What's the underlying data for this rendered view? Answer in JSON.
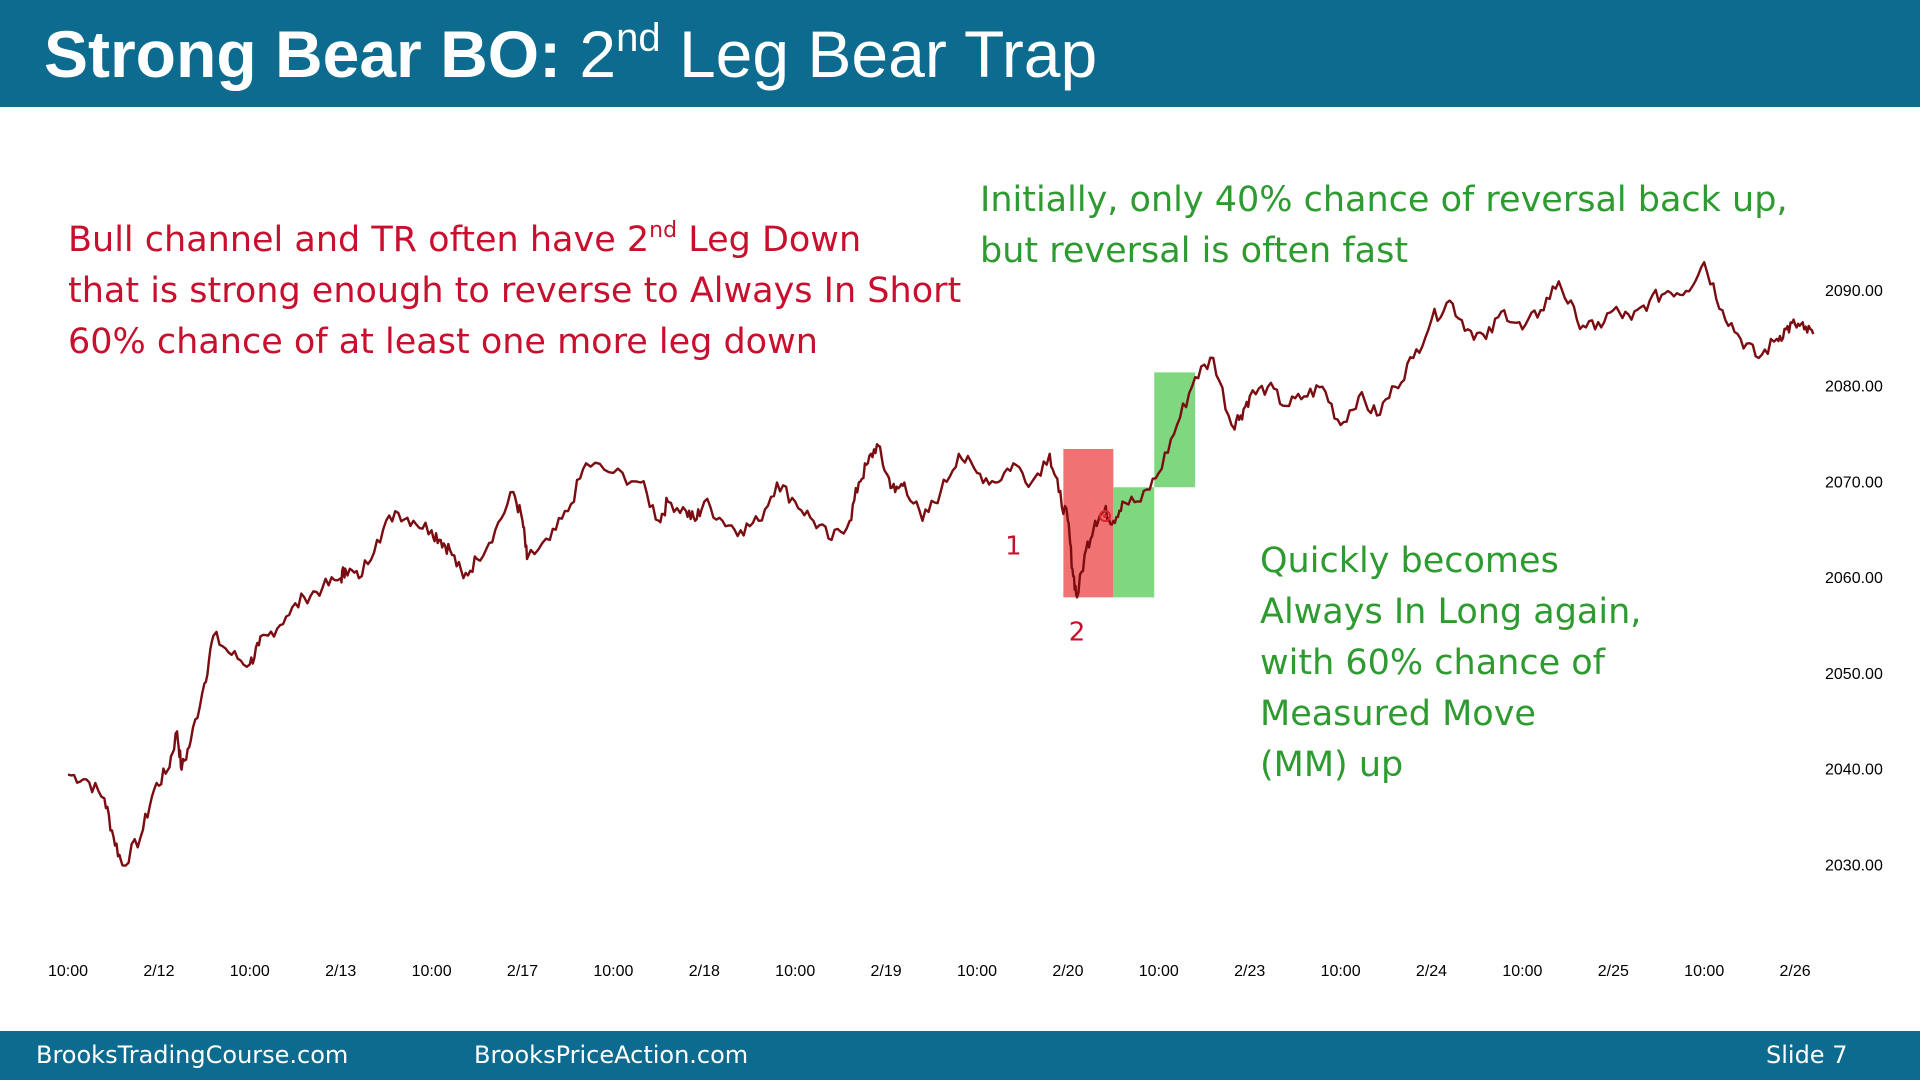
{
  "header": {
    "title_bold": "Strong Bear BO:",
    "title_pre": "2",
    "title_sup": "nd",
    "title_rest": "Leg Bear Trap"
  },
  "annotations": {
    "bear_line1_pre": "Bull channel and TR often have 2",
    "bear_line1_sup": "nd",
    "bear_line1_post": " Leg Down",
    "bear_line2": "that is strong enough to reverse to Always In Short",
    "bear_line3": "60% chance of at least one more leg down",
    "init_line1": "Initially, only 40% chance of reversal back up,",
    "init_line2": "but reversal is often fast",
    "long_line1": "Quickly becomes",
    "long_line2": "Always In Long again,",
    "long_line3": "with 60% chance of",
    "long_line4": "Measured Move",
    "long_line5": "(MM) up"
  },
  "footer": {
    "left": "BrooksTradingCourse.com",
    "middle": "BrooksPriceAction.com",
    "right": "Slide  7"
  },
  "colors": {
    "header_bg": "#0c6b8e",
    "price_line": "#7b0d12",
    "bear_note": "#c8102e",
    "bull_note": "#2e9b30",
    "bear_box": "#f07272",
    "bull_box": "#7fd87f"
  },
  "chart_data": {
    "type": "line",
    "title": "",
    "xlabel": "",
    "ylabel": "",
    "ylim": [
      2022,
      2097
    ],
    "y_ticks": [
      "2030.00",
      "2040.00",
      "2050.00",
      "2060.00",
      "2070.00",
      "2080.00",
      "2090.00"
    ],
    "x_ticks": [
      "10:00",
      "2/12",
      "10:00",
      "2/13",
      "10:00",
      "2/17",
      "10:00",
      "2/18",
      "10:00",
      "2/19",
      "10:00",
      "2/20",
      "10:00",
      "2/23",
      "10:00",
      "2/24",
      "10:00",
      "2/25",
      "10:00",
      "2/26"
    ],
    "series": [
      {
        "x": [
          0,
          0.2,
          0.4,
          0.5,
          0.6,
          0.8,
          0.95,
          1.1,
          1.2,
          1.25,
          1.35,
          1.5,
          1.6,
          1.8,
          2.0,
          2.1,
          2.2,
          2.4,
          2.6,
          2.8,
          3.0,
          3.05,
          3.2,
          3.4,
          3.6,
          3.8,
          4.0,
          4.1,
          4.2,
          4.35,
          4.5,
          4.7,
          4.9,
          5.0,
          5.05,
          5.3,
          5.5,
          5.7,
          6.0,
          6.3,
          6.5,
          6.6,
          6.8,
          6.9,
          7.0,
          7.2,
          7.4,
          7.6,
          7.8,
          8.0,
          8.2,
          8.4,
          8.6,
          8.7,
          8.8,
          8.9,
          9.0,
          9.1,
          9.2,
          9.4,
          9.6,
          9.8,
          10.0,
          10.2,
          10.4,
          10.6,
          10.8,
          10.9,
          11.0,
          11.05,
          11.1,
          11.2,
          11.3,
          11.4,
          11.5,
          11.6,
          11.8,
          12.0,
          12.2,
          12.4,
          12.6,
          12.8,
          12.9,
          13.0,
          13.2,
          13.4,
          13.6,
          13.8,
          14.0,
          14.2,
          14.4,
          14.6,
          14.8,
          15.0,
          15.2,
          15.4,
          15.6,
          15.8,
          16.0,
          16.2,
          16.4,
          16.6,
          16.8,
          17.0,
          17.2,
          17.4,
          17.6,
          17.8,
          18.0,
          18.2,
          18.4,
          18.6,
          18.8,
          18.9,
          19.0,
          19.1,
          19.2
        ],
        "values": [
          2039.5,
          2039,
          2037,
          2033,
          2030,
          2033,
          2038,
          2040,
          2044,
          2040,
          2043,
          2049,
          2054,
          2052,
          2051,
          2053,
          2054,
          2056,
          2058,
          2059,
          2060,
          2061,
          2060,
          2064,
          2067,
          2066,
          2065,
          2064,
          2063,
          2060,
          2062,
          2065,
          2069,
          2066,
          2062,
          2064,
          2067,
          2072,
          2071,
          2070,
          2066,
          2068,
          2067,
          2066,
          2068,
          2066,
          2065,
          2066,
          2070,
          2068,
          2066,
          2064,
          2066,
          2070,
          2072,
          2074,
          2071,
          2069,
          2070,
          2066,
          2069,
          2073,
          2071,
          2070,
          2072,
          2070,
          2073,
          2069,
          2066,
          2061,
          2058,
          2063,
          2066,
          2067,
          2066,
          2068,
          2068,
          2071,
          2076,
          2081,
          2083,
          2076,
          2077,
          2079,
          2080,
          2078,
          2079,
          2080,
          2076,
          2079,
          2077,
          2080,
          2083,
          2087,
          2089,
          2086,
          2085,
          2088,
          2086,
          2088,
          2091,
          2087,
          2086,
          2088,
          2087,
          2089,
          2090,
          2090,
          2093,
          2088,
          2085,
          2083,
          2085,
          2086,
          2086.5,
          2086,
          2085.5
        ]
      }
    ],
    "wave_labels": [
      {
        "text": "1",
        "x": 10.4,
        "y": 2062.5
      },
      {
        "text": "2",
        "x": 11.1,
        "y": 2053.5
      }
    ],
    "boxes": [
      {
        "kind": "bear",
        "x0": 10.95,
        "x1": 11.5,
        "y0": 2058,
        "y1": 2073.5
      },
      {
        "kind": "bull",
        "x0": 11.5,
        "x1": 11.95,
        "y0": 2058,
        "y1": 2069.5
      },
      {
        "kind": "bull",
        "x0": 11.95,
        "x1": 12.4,
        "y0": 2069.5,
        "y1": 2081.5
      }
    ]
  }
}
